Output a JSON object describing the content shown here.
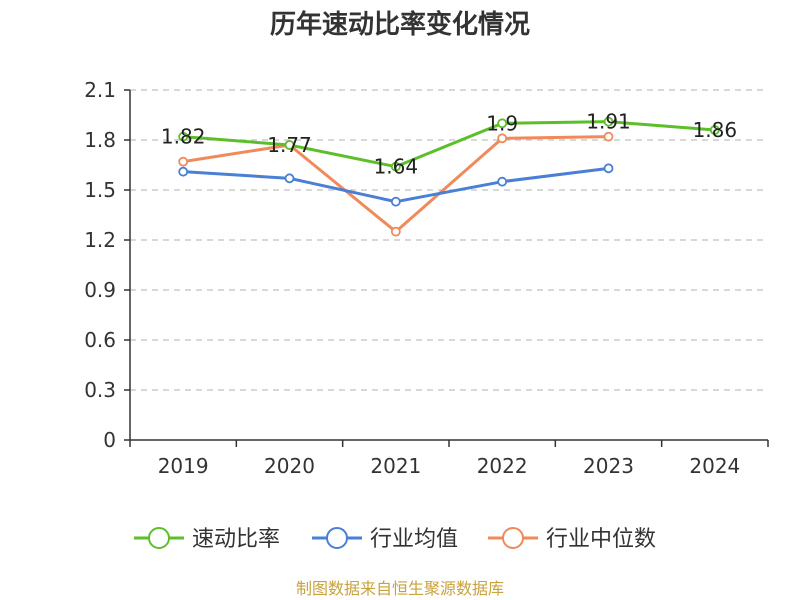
{
  "chart_data": {
    "type": "line",
    "title": "历年速动比率变化情况",
    "categories": [
      "2019",
      "2020",
      "2021",
      "2022",
      "2023",
      "2024"
    ],
    "yticks": [
      "0",
      "0.3",
      "0.6",
      "0.9",
      "1.2",
      "1.5",
      "1.8",
      "2.1"
    ],
    "ylim": [
      0,
      2.1
    ],
    "grid": true,
    "legend_position": "bottom",
    "series": [
      {
        "name": "速动比率",
        "color": "#5cbf2a",
        "values": [
          1.82,
          1.77,
          1.64,
          1.9,
          1.91,
          1.86
        ],
        "labels": [
          "1.82",
          "1.77",
          "1.64",
          "1.9",
          "1.91",
          "1.86"
        ]
      },
      {
        "name": "行业均值",
        "color": "#4a7fd6",
        "values": [
          1.61,
          1.57,
          1.43,
          1.55,
          1.63,
          null
        ]
      },
      {
        "name": "行业中位数",
        "color": "#f08a5a",
        "values": [
          1.67,
          1.77,
          1.25,
          1.81,
          1.82,
          null
        ]
      }
    ]
  },
  "source": "制图数据来自恒生聚源数据库"
}
